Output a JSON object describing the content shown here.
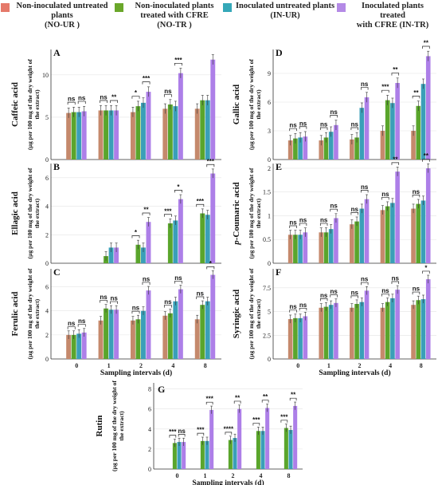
{
  "legend": [
    {
      "line1": "Non-inoculated untreated",
      "line2": "plants",
      "code": "(NO-UR )",
      "color": "#e5796a"
    },
    {
      "line1": "Non-inoculated plants",
      "line2": "treated with CFRE",
      "code": "(NO-TR )",
      "color": "#6aa72a"
    },
    {
      "line1": "Inoculated untreated plants",
      "line2": "",
      "code": "(IN-UR)",
      "color": "#35a8b8"
    },
    {
      "line1": "Inoculated plants treated",
      "line2": "with CFRE (IN-TR)",
      "code": "",
      "color": "#b48ae6"
    }
  ],
  "x_axis_label": "Sampling intervals (d)",
  "colors": {
    "NO-UR": "#c5896c",
    "NO-TR": "#5aa52c",
    "IN-UR": "#3a9fb8",
    "IN-TR": "#ad7fe8"
  },
  "chart_data": [
    {
      "type": "bar",
      "panel": "A",
      "title_line1": "Caffeic acid",
      "ylabel": "(µg per 100 mg of the dry weight of the extract)",
      "categories": [
        "0",
        "1",
        "2",
        "4",
        "8"
      ],
      "yticks": [
        0,
        5,
        10
      ],
      "ylim": [
        0,
        13
      ],
      "series": [
        {
          "name": "NO-UR",
          "values": [
            5.5,
            5.8,
            5.6,
            6.0,
            6.0
          ]
        },
        {
          "name": "NO-TR",
          "values": [
            5.6,
            5.8,
            6.3,
            6.5,
            7.0
          ]
        },
        {
          "name": "IN-UR",
          "values": [
            5.6,
            5.8,
            6.7,
            6.3,
            7.0
          ]
        },
        {
          "name": "IN-TR",
          "values": [
            5.7,
            5.8,
            8.0,
            10.2,
            11.8
          ]
        }
      ],
      "annotations": [
        "ns",
        "ns",
        "ns",
        "**",
        "*",
        "***",
        "ns",
        "***"
      ]
    },
    {
      "type": "bar",
      "panel": "B",
      "title_line1": "Ellagic acid",
      "ylabel": "(µg per 100 mg of the dry weight of the extract)",
      "categories": [
        "0",
        "1",
        "2",
        "4",
        "8"
      ],
      "yticks": [
        0,
        2,
        4,
        6
      ],
      "ylim": [
        0,
        7
      ],
      "series": [
        {
          "name": "NO-UR",
          "values": [
            0,
            0,
            0,
            0,
            0
          ]
        },
        {
          "name": "NO-TR",
          "values": [
            0,
            0.5,
            1.3,
            2.8,
            3.5
          ]
        },
        {
          "name": "IN-UR",
          "values": [
            0,
            1.1,
            1.1,
            3.0,
            3.4
          ]
        },
        {
          "name": "IN-TR",
          "values": [
            0,
            1.1,
            2.9,
            4.5,
            6.3
          ]
        }
      ],
      "annotations": [
        "*",
        "**",
        "***",
        "*",
        "***",
        "***"
      ]
    },
    {
      "type": "bar",
      "panel": "C",
      "title_line1": "Ferulic acid",
      "ylabel": "(µg per 100 mg of the dry weight of the extract)",
      "categories": [
        "0",
        "1",
        "2",
        "4",
        "8"
      ],
      "yticks": [
        0,
        2,
        4,
        6
      ],
      "ylim": [
        0,
        7.5
      ],
      "series": [
        {
          "name": "NO-UR",
          "values": [
            2.0,
            3.2,
            3.2,
            3.6,
            3.3
          ]
        },
        {
          "name": "NO-TR",
          "values": [
            2.0,
            4.2,
            3.3,
            3.8,
            4.5
          ]
        },
        {
          "name": "IN-UR",
          "values": [
            2.1,
            4.1,
            4.0,
            4.8,
            4.8
          ]
        },
        {
          "name": "IN-TR",
          "values": [
            2.2,
            4.1,
            5.7,
            5.8,
            7.0
          ]
        }
      ],
      "annotations": [
        "ns",
        "ns",
        "ns",
        "ns",
        "ns",
        "ns",
        "ns",
        "ns",
        "ns",
        "*"
      ]
    },
    {
      "type": "bar",
      "panel": "D",
      "title_line1": "Gallic acid",
      "ylabel": "(µg per 100 mg of the dry weight of the extract)",
      "categories": [
        "0",
        "1",
        "2",
        "4",
        "8"
      ],
      "yticks": [
        0,
        3,
        6,
        9
      ],
      "ylim": [
        0,
        11.5
      ],
      "series": [
        {
          "name": "NO-UR",
          "values": [
            2.0,
            2.0,
            2.1,
            3.0,
            3.0
          ]
        },
        {
          "name": "NO-TR",
          "values": [
            2.2,
            2.3,
            2.3,
            6.2,
            5.6
          ]
        },
        {
          "name": "IN-UR",
          "values": [
            2.3,
            2.9,
            5.4,
            5.9,
            7.9
          ]
        },
        {
          "name": "IN-TR",
          "values": [
            2.4,
            3.6,
            6.5,
            8.0,
            10.8
          ]
        }
      ],
      "annotations": [
        "ns",
        "ns",
        "ns",
        "ns",
        "ns",
        "ns",
        "***",
        "**",
        "**",
        "**"
      ]
    },
    {
      "type": "bar",
      "panel": "E",
      "title_line1": "p-Coumaric acid",
      "ylabel": "(µg per 100 mg of the dry weight of the extract)",
      "categories": [
        "0",
        "1",
        "2",
        "4",
        "8"
      ],
      "yticks": [
        0,
        0.5,
        1,
        1.5,
        2
      ],
      "ylim": [
        0,
        2.1
      ],
      "series": [
        {
          "name": "NO-UR",
          "values": [
            0.6,
            0.65,
            0.82,
            1.12,
            1.15
          ]
        },
        {
          "name": "NO-TR",
          "values": [
            0.6,
            0.65,
            0.88,
            1.2,
            1.25
          ]
        },
        {
          "name": "IN-UR",
          "values": [
            0.6,
            0.72,
            1.15,
            1.27,
            1.32
          ]
        },
        {
          "name": "IN-TR",
          "values": [
            0.65,
            0.95,
            1.35,
            1.93,
            2.0
          ]
        }
      ],
      "annotations": [
        "ns",
        "ns",
        "ns",
        "ns",
        "ns",
        "ns",
        "ns",
        "**",
        "ns",
        "**"
      ]
    },
    {
      "type": "bar",
      "panel": "F",
      "title_line1": "Syringic acid",
      "ylabel": "(µg per 100 mg of the dry weight of the extract)",
      "categories": [
        "0",
        "1",
        "2",
        "4",
        "8"
      ],
      "yticks": [
        0,
        2.5,
        5,
        7.5
      ],
      "ylim": [
        0,
        9.5
      ],
      "series": [
        {
          "name": "NO-UR",
          "values": [
            4.2,
            5.4,
            5.4,
            5.4,
            5.7
          ]
        },
        {
          "name": "NO-TR",
          "values": [
            4.3,
            5.5,
            5.8,
            6.0,
            6.2
          ]
        },
        {
          "name": "IN-UR",
          "values": [
            4.3,
            5.7,
            6.0,
            6.4,
            6.3
          ]
        },
        {
          "name": "IN-TR",
          "values": [
            4.5,
            5.9,
            7.2,
            7.3,
            8.4
          ]
        }
      ],
      "annotations": [
        "ns",
        "ns",
        "ns",
        "ns",
        "ns",
        "ns",
        "ns",
        "ns",
        "ns",
        "*"
      ]
    },
    {
      "type": "bar",
      "panel": "G",
      "title_line1": "Rutin",
      "ylabel": "(µg per 100 mg of the dry weight of the extract)",
      "categories": [
        "0",
        "1",
        "2",
        "4",
        "8"
      ],
      "yticks": [
        0,
        2,
        4,
        6,
        8
      ],
      "ylim": [
        0,
        8.6
      ],
      "series": [
        {
          "name": "NO-UR",
          "values": [
            0,
            0,
            0,
            0,
            0
          ]
        },
        {
          "name": "NO-TR",
          "values": [
            2.6,
            2.8,
            2.9,
            3.8,
            4.1
          ]
        },
        {
          "name": "IN-UR",
          "values": [
            2.7,
            2.8,
            3.1,
            3.8,
            3.9
          ]
        },
        {
          "name": "IN-TR",
          "values": [
            2.7,
            5.9,
            6.0,
            6.1,
            6.3
          ]
        }
      ],
      "annotations": [
        "***",
        "ns",
        "***",
        "***",
        "****",
        "**",
        "***",
        "**",
        "***",
        "**"
      ]
    }
  ]
}
